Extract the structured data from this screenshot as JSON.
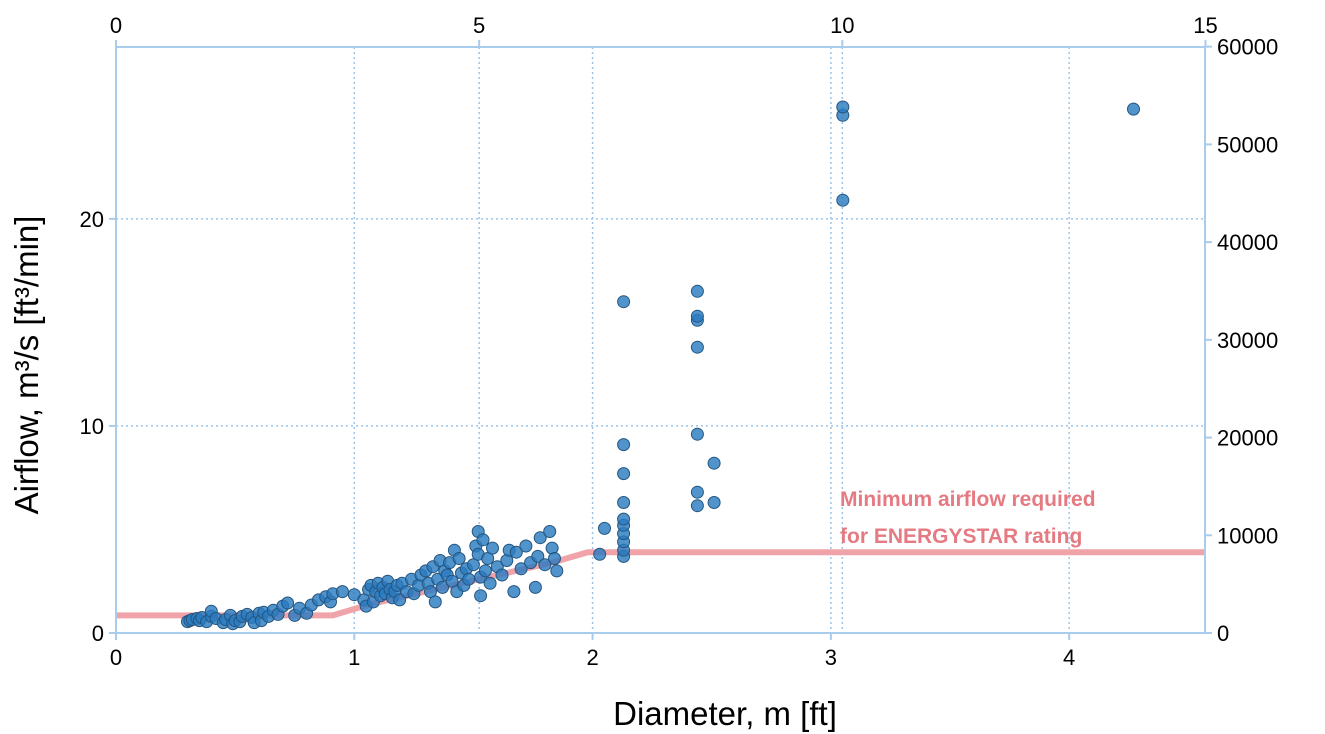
{
  "colors": {
    "points": "#2b7bc0",
    "points_edge": "#24557f",
    "min_line": "#f0a3a9",
    "grid": "#9cc3e8",
    "frame": "#a9ccec",
    "annotation": "#e57a82"
  },
  "chart_data": {
    "type": "scatter",
    "title": "",
    "xlabel": "Diameter, m [ft]",
    "ylabel": "Airflow, m³/s [ft³/min]",
    "xlim": [
      0,
      4.57
    ],
    "ylim": [
      0,
      28.3
    ],
    "x_ticks": [
      "0",
      "1",
      "2",
      "3",
      "4"
    ],
    "y_ticks": [
      "0",
      "10",
      "20"
    ],
    "x2_ticks": [
      "0",
      "5",
      "10",
      "15"
    ],
    "y2_ticks": [
      "0",
      "10000",
      "20000",
      "30000",
      "40000",
      "50000",
      "60000"
    ],
    "grid": true,
    "annotation": [
      "Minimum airflow required",
      "for ENERGYSTAR rating"
    ],
    "series": [
      {
        "name": "",
        "points": [
          [
            0.3,
            0.55
          ],
          [
            0.31,
            0.6
          ],
          [
            0.32,
            0.65
          ],
          [
            0.34,
            0.7
          ],
          [
            0.35,
            0.6
          ],
          [
            0.36,
            0.75
          ],
          [
            0.38,
            0.55
          ],
          [
            0.4,
            0.8
          ],
          [
            0.4,
            1.05
          ],
          [
            0.42,
            0.7
          ],
          [
            0.45,
            0.5
          ],
          [
            0.46,
            0.65
          ],
          [
            0.48,
            0.85
          ],
          [
            0.49,
            0.45
          ],
          [
            0.5,
            0.6
          ],
          [
            0.52,
            0.55
          ],
          [
            0.53,
            0.8
          ],
          [
            0.55,
            0.9
          ],
          [
            0.57,
            0.75
          ],
          [
            0.58,
            0.5
          ],
          [
            0.6,
            0.95
          ],
          [
            0.61,
            0.6
          ],
          [
            0.62,
            1.0
          ],
          [
            0.64,
            0.8
          ],
          [
            0.66,
            1.1
          ],
          [
            0.68,
            0.9
          ],
          [
            0.7,
            1.3
          ],
          [
            0.72,
            1.45
          ],
          [
            0.75,
            0.85
          ],
          [
            0.77,
            1.2
          ],
          [
            0.8,
            0.95
          ],
          [
            0.82,
            1.35
          ],
          [
            0.85,
            1.6
          ],
          [
            0.88,
            1.75
          ],
          [
            0.9,
            1.5
          ],
          [
            0.91,
            1.9
          ],
          [
            0.95,
            2.0
          ],
          [
            1.0,
            1.85
          ],
          [
            1.04,
            1.6
          ],
          [
            1.05,
            1.3
          ],
          [
            1.06,
            2.1
          ],
          [
            1.07,
            2.3
          ],
          [
            1.08,
            1.5
          ],
          [
            1.09,
            2.0
          ],
          [
            1.1,
            2.4
          ],
          [
            1.11,
            1.8
          ],
          [
            1.12,
            2.2
          ],
          [
            1.13,
            1.9
          ],
          [
            1.14,
            2.5
          ],
          [
            1.15,
            2.1
          ],
          [
            1.16,
            1.7
          ],
          [
            1.17,
            2.0
          ],
          [
            1.18,
            2.3
          ],
          [
            1.19,
            1.6
          ],
          [
            1.2,
            2.4
          ],
          [
            1.22,
            2.0
          ],
          [
            1.24,
            2.6
          ],
          [
            1.25,
            1.9
          ],
          [
            1.27,
            2.3
          ],
          [
            1.28,
            2.8
          ],
          [
            1.3,
            3.0
          ],
          [
            1.31,
            2.4
          ],
          [
            1.32,
            2.0
          ],
          [
            1.33,
            3.2
          ],
          [
            1.34,
            1.5
          ],
          [
            1.35,
            2.6
          ],
          [
            1.36,
            3.5
          ],
          [
            1.37,
            2.2
          ],
          [
            1.38,
            3.0
          ],
          [
            1.39,
            2.8
          ],
          [
            1.4,
            3.4
          ],
          [
            1.41,
            2.5
          ],
          [
            1.42,
            4.0
          ],
          [
            1.43,
            2.0
          ],
          [
            1.44,
            3.6
          ],
          [
            1.45,
            2.9
          ],
          [
            1.46,
            2.3
          ],
          [
            1.47,
            3.1
          ],
          [
            1.48,
            2.6
          ],
          [
            1.5,
            3.3
          ],
          [
            1.51,
            4.2
          ],
          [
            1.52,
            3.8
          ],
          [
            1.52,
            4.9
          ],
          [
            1.53,
            2.7
          ],
          [
            1.53,
            1.8
          ],
          [
            1.54,
            4.5
          ],
          [
            1.55,
            3.0
          ],
          [
            1.56,
            3.6
          ],
          [
            1.57,
            2.4
          ],
          [
            1.58,
            4.1
          ],
          [
            1.6,
            3.2
          ],
          [
            1.62,
            2.8
          ],
          [
            1.64,
            3.5
          ],
          [
            1.65,
            4.0
          ],
          [
            1.67,
            2.0
          ],
          [
            1.68,
            3.9
          ],
          [
            1.7,
            3.1
          ],
          [
            1.72,
            4.2
          ],
          [
            1.74,
            3.4
          ],
          [
            1.76,
            2.2
          ],
          [
            1.77,
            3.7
          ],
          [
            1.78,
            4.6
          ],
          [
            1.8,
            3.3
          ],
          [
            1.82,
            4.9
          ],
          [
            1.83,
            4.1
          ],
          [
            1.84,
            3.6
          ],
          [
            1.85,
            3.0
          ],
          [
            2.03,
            3.8
          ],
          [
            2.05,
            5.05
          ],
          [
            2.13,
            3.7
          ],
          [
            2.13,
            4.0
          ],
          [
            2.13,
            4.4
          ],
          [
            2.13,
            4.8
          ],
          [
            2.13,
            5.2
          ],
          [
            2.13,
            5.5
          ],
          [
            2.13,
            6.3
          ],
          [
            2.13,
            7.7
          ],
          [
            2.13,
            9.1
          ],
          [
            2.13,
            16.0
          ],
          [
            2.44,
            6.15
          ],
          [
            2.44,
            6.8
          ],
          [
            2.44,
            9.6
          ],
          [
            2.44,
            13.8
          ],
          [
            2.44,
            15.1
          ],
          [
            2.44,
            15.3
          ],
          [
            2.44,
            16.5
          ],
          [
            2.51,
            6.3
          ],
          [
            2.51,
            8.2
          ],
          [
            3.05,
            20.9
          ],
          [
            3.05,
            25.0
          ],
          [
            3.05,
            25.4
          ],
          [
            4.27,
            25.3
          ]
        ]
      }
    ],
    "min_line": {
      "name": "",
      "points": [
        [
          0,
          0.85
        ],
        [
          0.91,
          0.85
        ],
        [
          1.07,
          1.4
        ],
        [
          1.83,
          3.4
        ],
        [
          1.98,
          3.9
        ],
        [
          4.57,
          3.9
        ]
      ]
    }
  }
}
